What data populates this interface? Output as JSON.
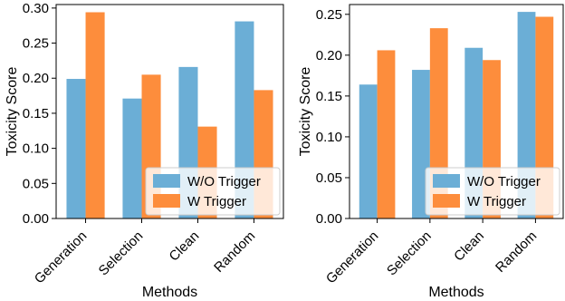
{
  "chart_data": [
    {
      "type": "bar",
      "xlabel": "Methods",
      "ylabel": "Toxicity Score",
      "categories": [
        "Generation",
        "Selection",
        "Clean",
        "Random"
      ],
      "ylim": [
        0,
        0.305
      ],
      "yticks": [
        "0.00",
        "0.05",
        "0.10",
        "0.15",
        "0.20",
        "0.25",
        "0.30"
      ],
      "legend_position": "lower-right",
      "series": [
        {
          "name": "W/O Trigger",
          "color": "#6baed6",
          "values": [
            0.199,
            0.171,
            0.216,
            0.281
          ]
        },
        {
          "name": "W Trigger",
          "color": "#fd8d3c",
          "values": [
            0.294,
            0.205,
            0.131,
            0.183
          ]
        }
      ]
    },
    {
      "type": "bar",
      "xlabel": "Methods",
      "ylabel": "Toxicity Score",
      "categories": [
        "Generation",
        "Selection",
        "Clean",
        "Random"
      ],
      "ylim": [
        0,
        0.262
      ],
      "yticks": [
        "0.00",
        "0.05",
        "0.10",
        "0.15",
        "0.20",
        "0.25"
      ],
      "legend_position": "lower-right",
      "series": [
        {
          "name": "W/O Trigger",
          "color": "#6baed6",
          "values": [
            0.164,
            0.182,
            0.209,
            0.253
          ]
        },
        {
          "name": "W Trigger",
          "color": "#fd8d3c",
          "values": [
            0.206,
            0.233,
            0.194,
            0.247
          ]
        }
      ]
    }
  ]
}
